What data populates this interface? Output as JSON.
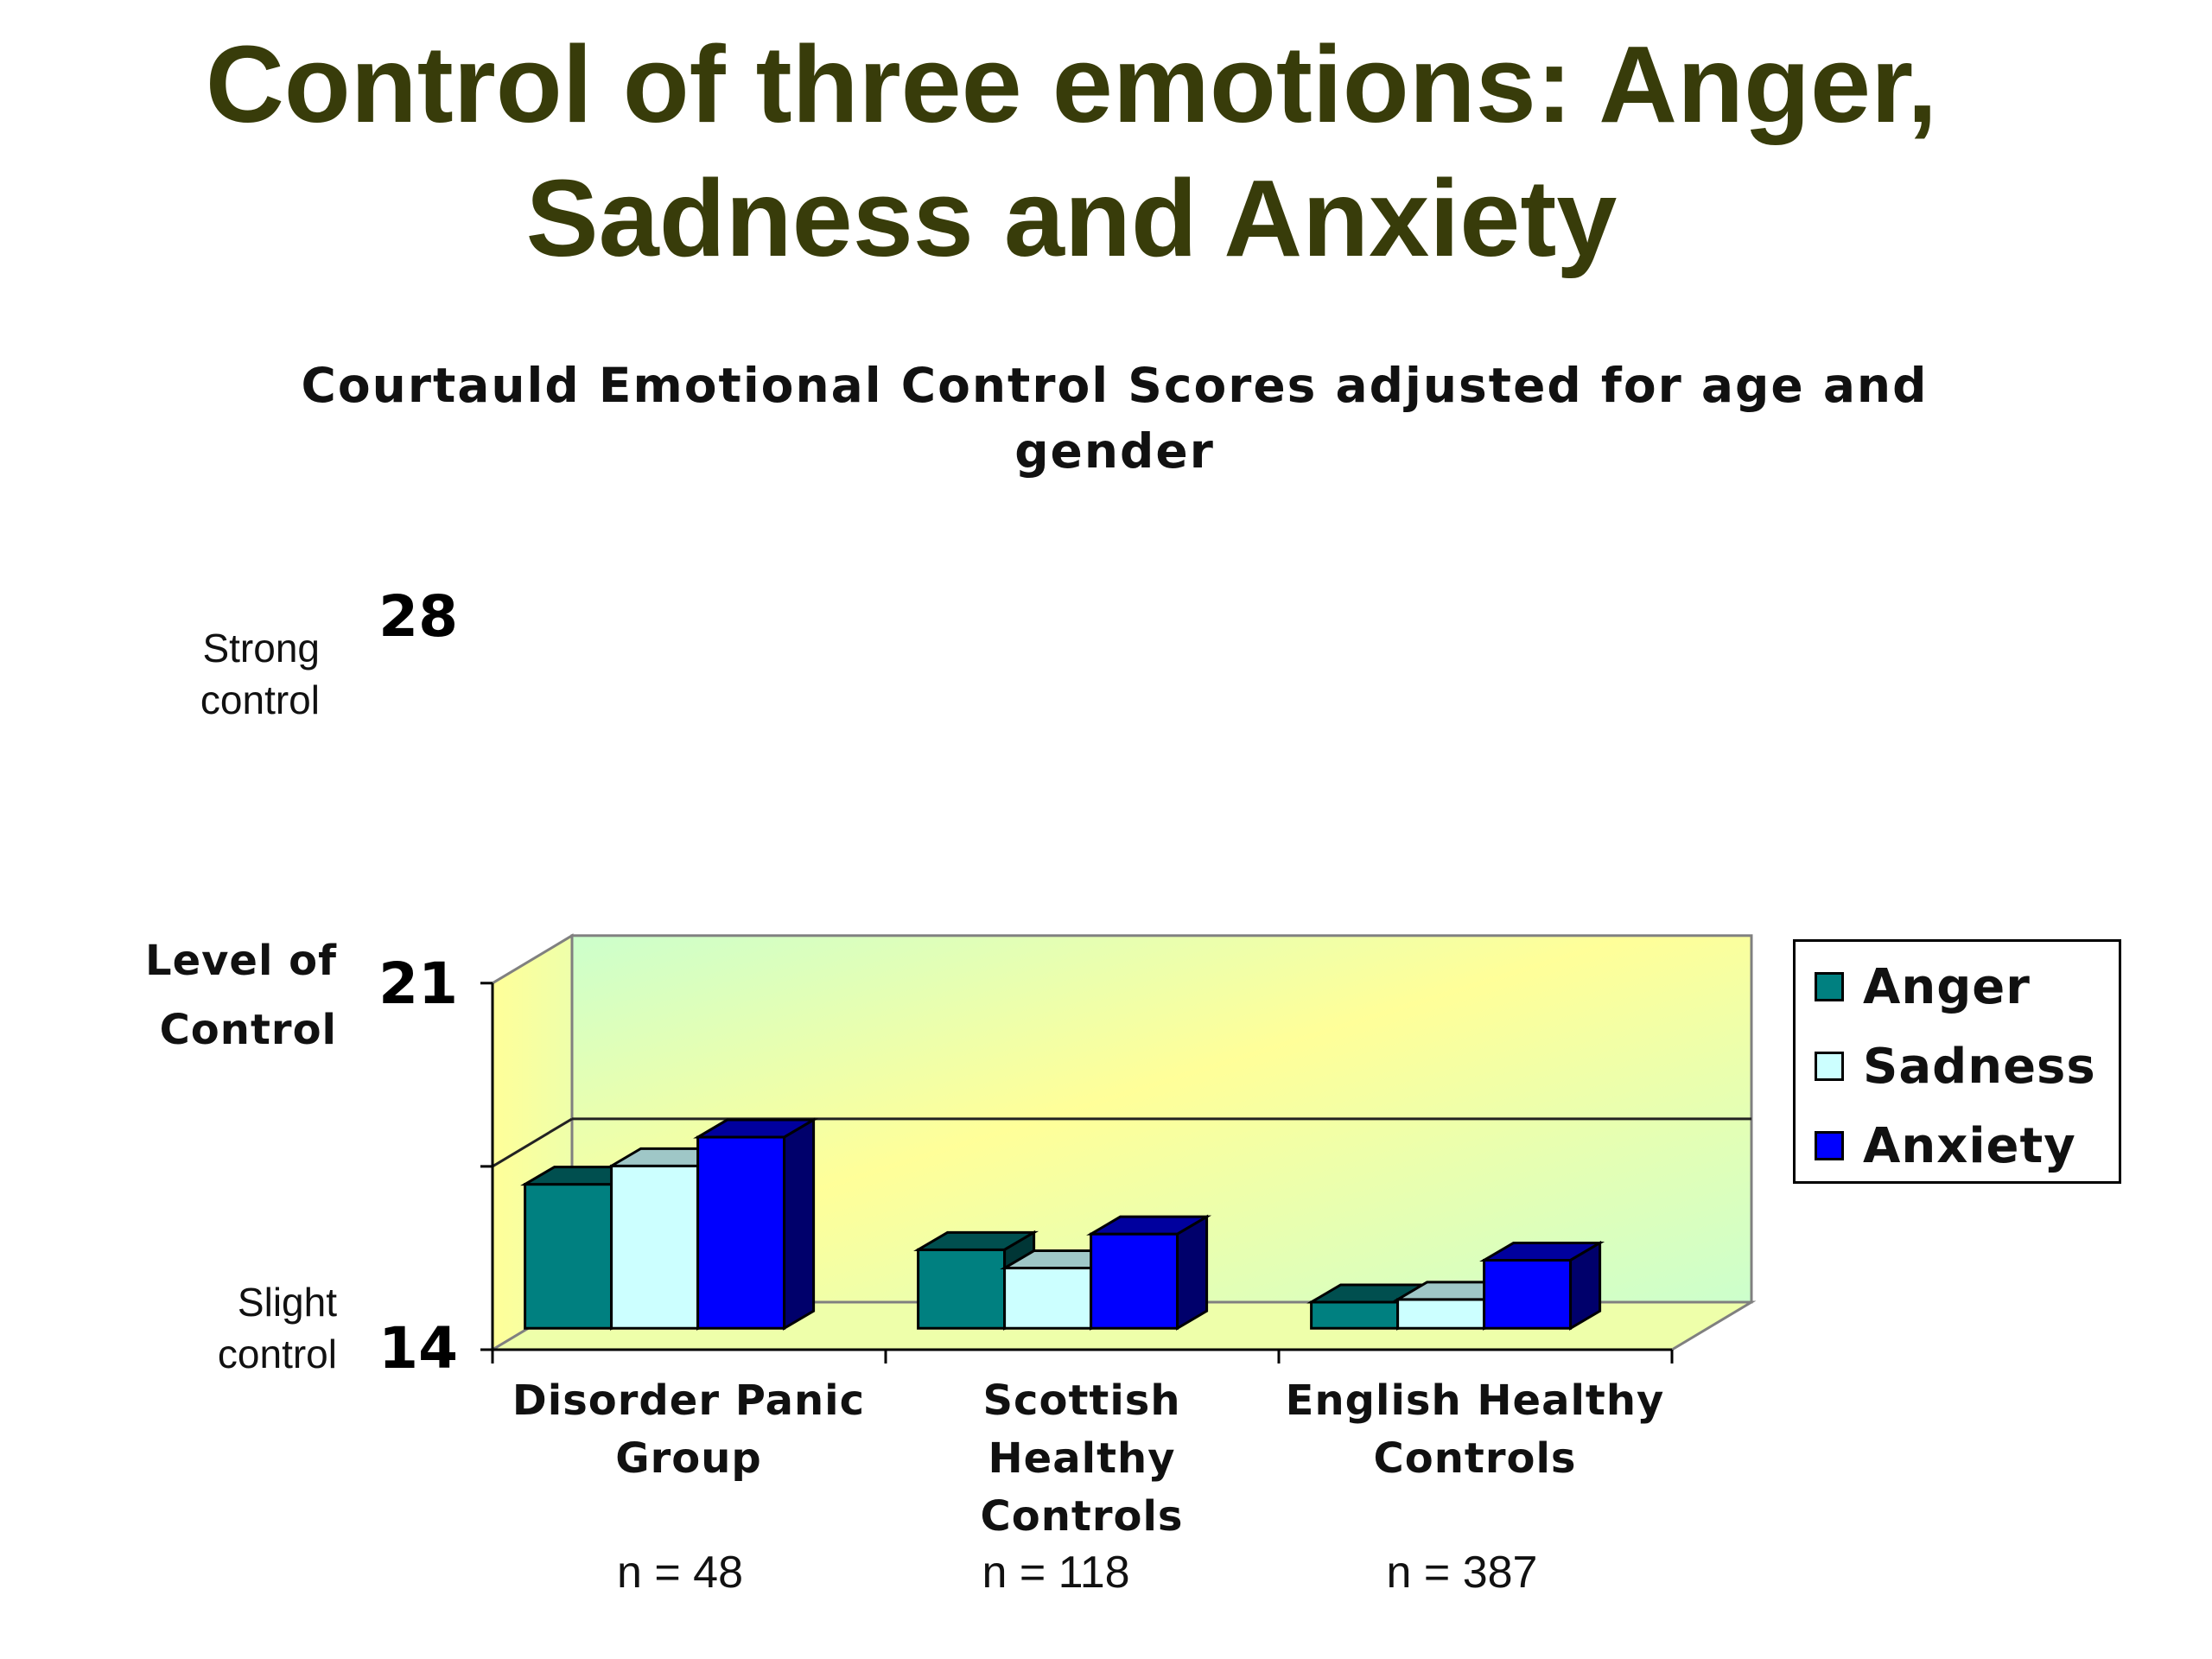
{
  "title": "Control of three emotions: Anger, Sadness and Anxiety",
  "chart_data": {
    "type": "bar",
    "title": "Courtauld  Emotional Control Scores adjusted for age and gender",
    "ylabel": "Level of Control",
    "ylim": [
      14,
      28
    ],
    "yticks": [
      "28",
      "21",
      "14"
    ],
    "y_annotations": {
      "top": "Strong control",
      "bottom": "Slight control"
    },
    "categories": [
      "Disorder Panic Group",
      "Scottish Healthy Controls",
      "English Healthy Controls"
    ],
    "category_lines": [
      [
        "Disorder Panic",
        "Group"
      ],
      [
        "Scottish",
        "Healthy",
        "Controls"
      ],
      [
        "English Healthy",
        "Controls"
      ]
    ],
    "sample_sizes": [
      "n = 48",
      "n = 118",
      "n = 387"
    ],
    "series": [
      {
        "name": "Anger",
        "color": "#008080",
        "values": [
          19.5,
          17.0,
          15.0
        ]
      },
      {
        "name": "Sadness",
        "color": "#ccffff",
        "values": [
          20.2,
          16.3,
          15.1
        ]
      },
      {
        "name": "Anxiety",
        "color": "#0000ff",
        "values": [
          21.3,
          17.6,
          16.6
        ]
      }
    ],
    "gridline_value": 21,
    "legend_position": "right",
    "wall_colors": [
      "#ffff99",
      "#ccffcc"
    ]
  }
}
